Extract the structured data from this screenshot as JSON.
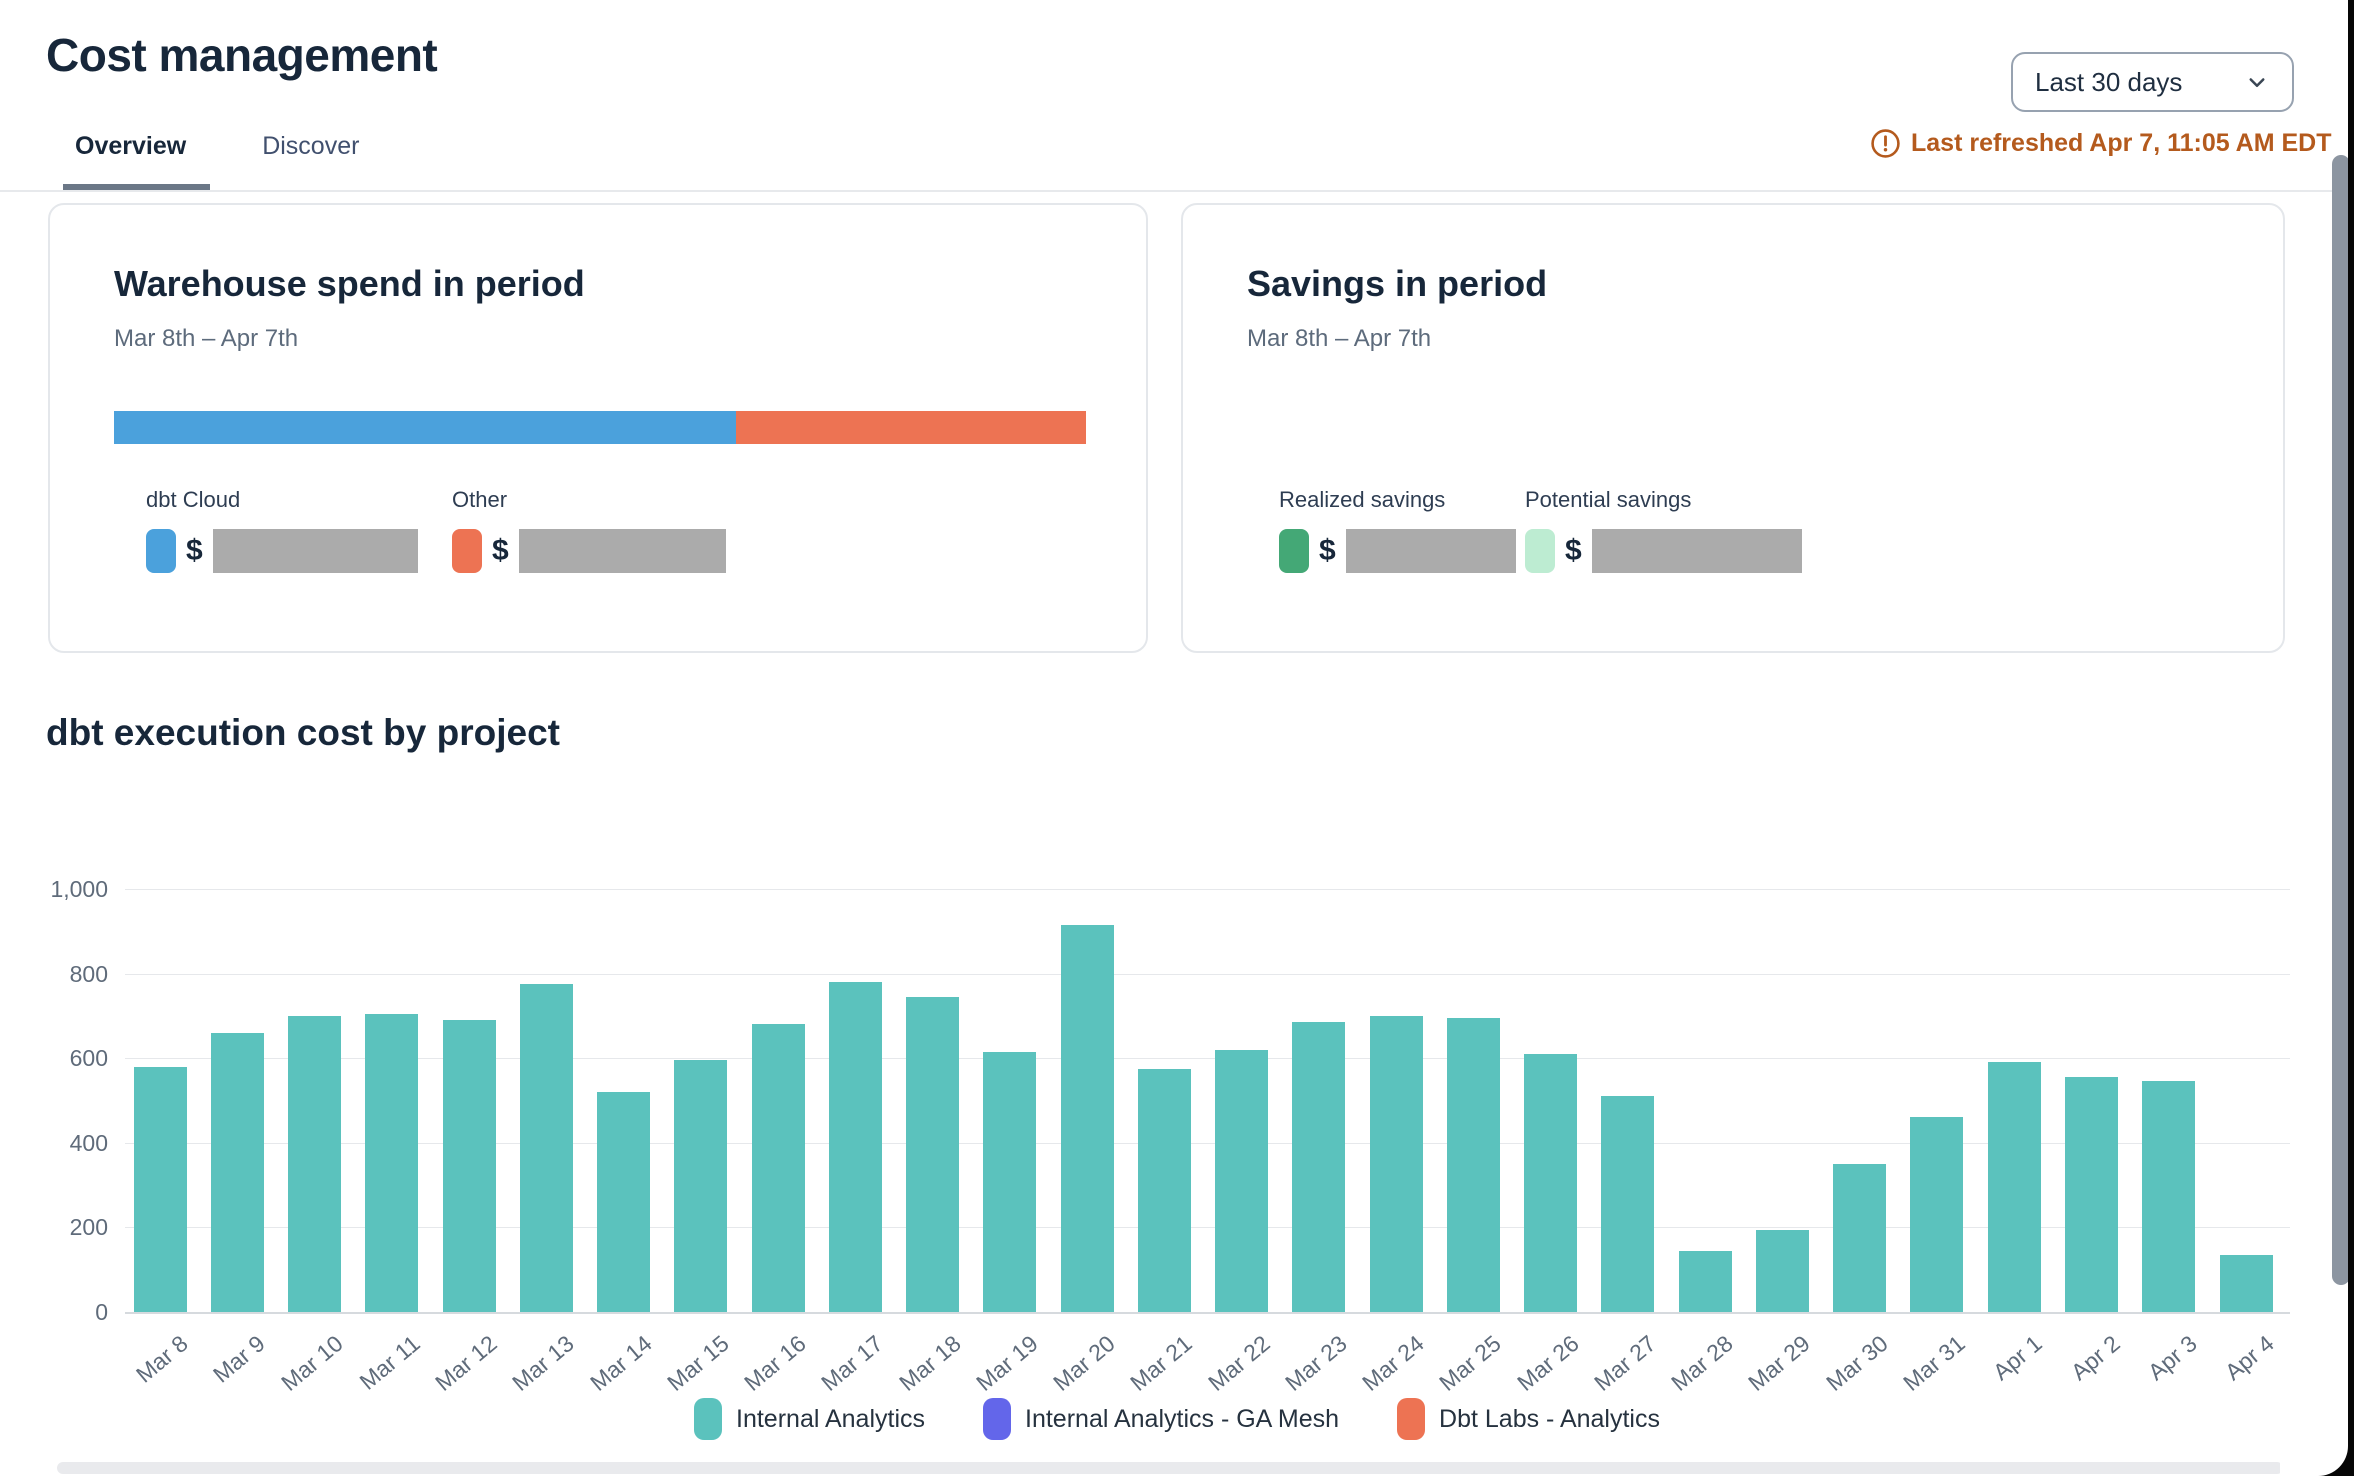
{
  "page": {
    "title": "Cost management"
  },
  "tabs": [
    {
      "label": "Overview",
      "active": true
    },
    {
      "label": "Discover",
      "active": false
    }
  ],
  "period_selector": {
    "value": "Last 30 days"
  },
  "refresh_status": {
    "text": "Last refreshed Apr 7, 11:05 AM EDT",
    "color": "#b45a1d"
  },
  "cards": {
    "warehouse": {
      "title": "Warehouse spend in period",
      "period": "Mar 8th – Apr 7th",
      "currency_prefix": "$",
      "amounts_redacted": true,
      "segments": [
        {
          "label": "dbt Cloud",
          "color": "#4ba1dc",
          "pct": 64
        },
        {
          "label": "Other",
          "color": "#ed7353",
          "pct": 36
        }
      ]
    },
    "savings": {
      "title": "Savings in period",
      "period": "Mar 8th – Apr 7th",
      "currency_prefix": "$",
      "amounts_redacted": true,
      "items": [
        {
          "label": "Realized savings",
          "color": "#44a876"
        },
        {
          "label": "Potential savings",
          "color": "#bdecd2"
        }
      ]
    }
  },
  "chart_section": {
    "title": "dbt execution cost by project"
  },
  "chart_data": {
    "type": "bar",
    "title": "dbt execution cost by project",
    "categories": [
      "Mar 8",
      "Mar 9",
      "Mar 10",
      "Mar 11",
      "Mar 12",
      "Mar 13",
      "Mar 14",
      "Mar 15",
      "Mar 16",
      "Mar 17",
      "Mar 18",
      "Mar 19",
      "Mar 20",
      "Mar 21",
      "Mar 22",
      "Mar 23",
      "Mar 24",
      "Mar 25",
      "Mar 26",
      "Mar 27",
      "Mar 28",
      "Mar 29",
      "Mar 30",
      "Mar 31",
      "Apr 1",
      "Apr 2",
      "Apr 3",
      "Apr 4"
    ],
    "series": [
      {
        "name": "Internal Analytics",
        "color": "#5bc2bd",
        "values": [
          580,
          660,
          700,
          705,
          690,
          775,
          520,
          595,
          680,
          780,
          745,
          615,
          915,
          575,
          620,
          685,
          700,
          695,
          610,
          510,
          145,
          195,
          350,
          460,
          590,
          555,
          545,
          135
        ]
      }
    ],
    "ylim": [
      0,
      1000
    ],
    "yticks": [
      {
        "v": 0,
        "label": "0"
      },
      {
        "v": 200,
        "label": "200"
      },
      {
        "v": 400,
        "label": "400"
      },
      {
        "v": 600,
        "label": "600"
      },
      {
        "v": 800,
        "label": "800"
      },
      {
        "v": 1000,
        "label": "1,000"
      }
    ],
    "grid": true,
    "legend_position": "bottom",
    "legend": [
      {
        "label": "Internal Analytics",
        "color": "#5bc2bd"
      },
      {
        "label": "Internal Analytics - GA Mesh",
        "color": "#6366ea"
      },
      {
        "label": "Dbt Labs - Analytics",
        "color": "#ed7353"
      }
    ]
  }
}
